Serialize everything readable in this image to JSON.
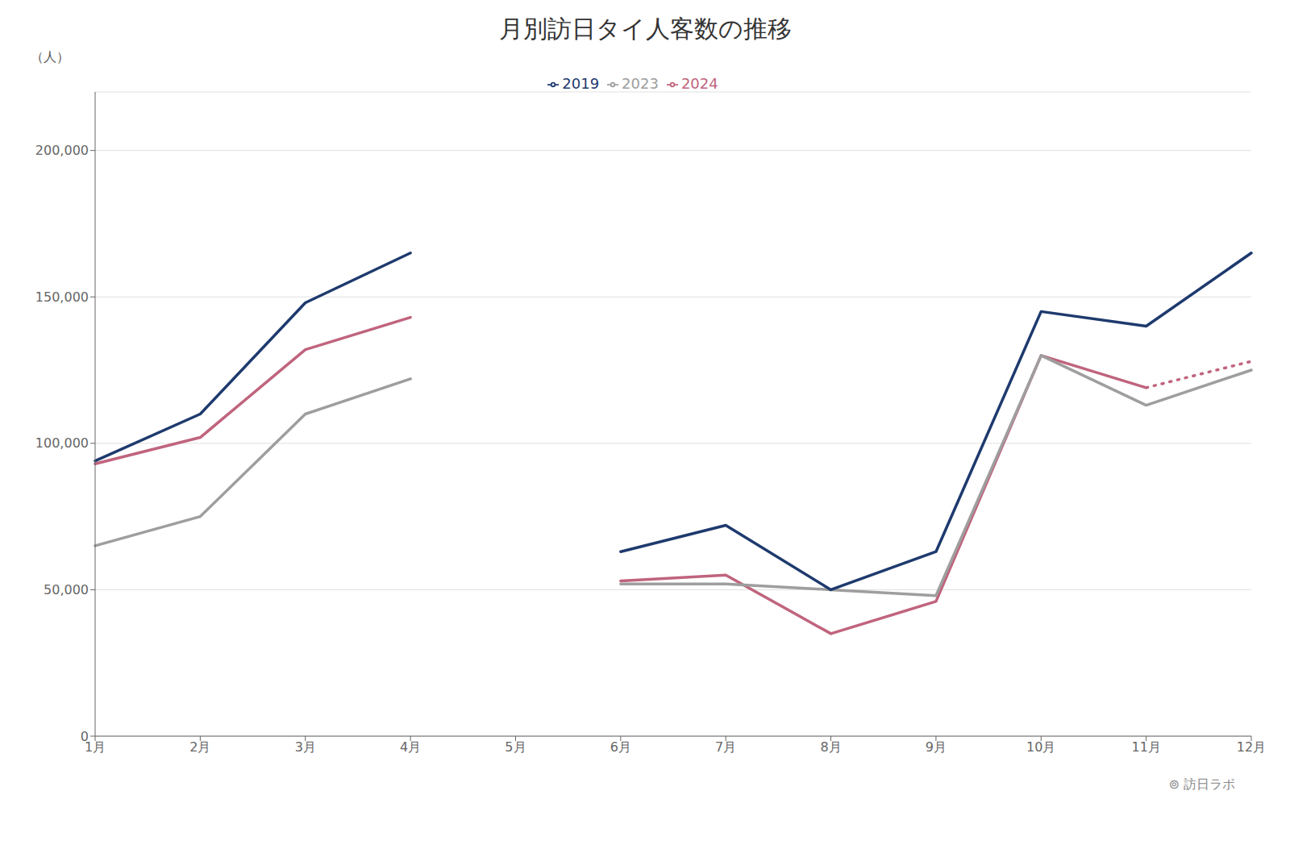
{
  "chart_data": {
    "type": "line",
    "title": "月別訪日タイ人客数の推移",
    "ylabel": "（人）",
    "annotations": [
      "⊚ 訪日ラボ"
    ],
    "categories": [
      "1月",
      "2月",
      "3月",
      "4月",
      "5月",
      "6月",
      "7月",
      "8月",
      "9月",
      "10月",
      "11月",
      "12月"
    ],
    "series": [
      {
        "name": "2024",
        "color": "#c0647d",
        "line_style": "solid",
        "values": [
          93000,
          102000,
          132000,
          143000,
          null,
          53000,
          55000,
          35000,
          46000,
          130000,
          119000,
          null
        ]
      },
      {
        "name": "2024",
        "color": "#c0647d",
        "line_style": "dotted",
        "values": [
          null,
          null,
          null,
          null,
          null,
          null,
          null,
          null,
          null,
          null,
          119000,
          128000
        ]
      },
      {
        "name": "2023",
        "color": "#9e9e9e",
        "line_style": "solid",
        "values": [
          65000,
          75000,
          110000,
          122000,
          null,
          52000,
          52000,
          50000,
          48000,
          130000,
          113000,
          125000
        ]
      },
      {
        "name": "2019",
        "color": "#1e3a6e",
        "line_style": "solid",
        "values": [
          94000,
          110000,
          148000,
          165000,
          null,
          63000,
          72000,
          50000,
          63000,
          145000,
          140000,
          165000
        ]
      }
    ],
    "ylim": [
      0,
      220000
    ],
    "yticks": [
      0,
      {
        "value": 50000,
        "label": "50,000"
      },
      {
        "value": 100000,
        "label": "100,000"
      },
      {
        "value": 150000,
        "label": "150,000"
      },
      {
        "value": 200000,
        "label": "200,000"
      }
    ],
    "grid": true,
    "legend": "top"
  }
}
